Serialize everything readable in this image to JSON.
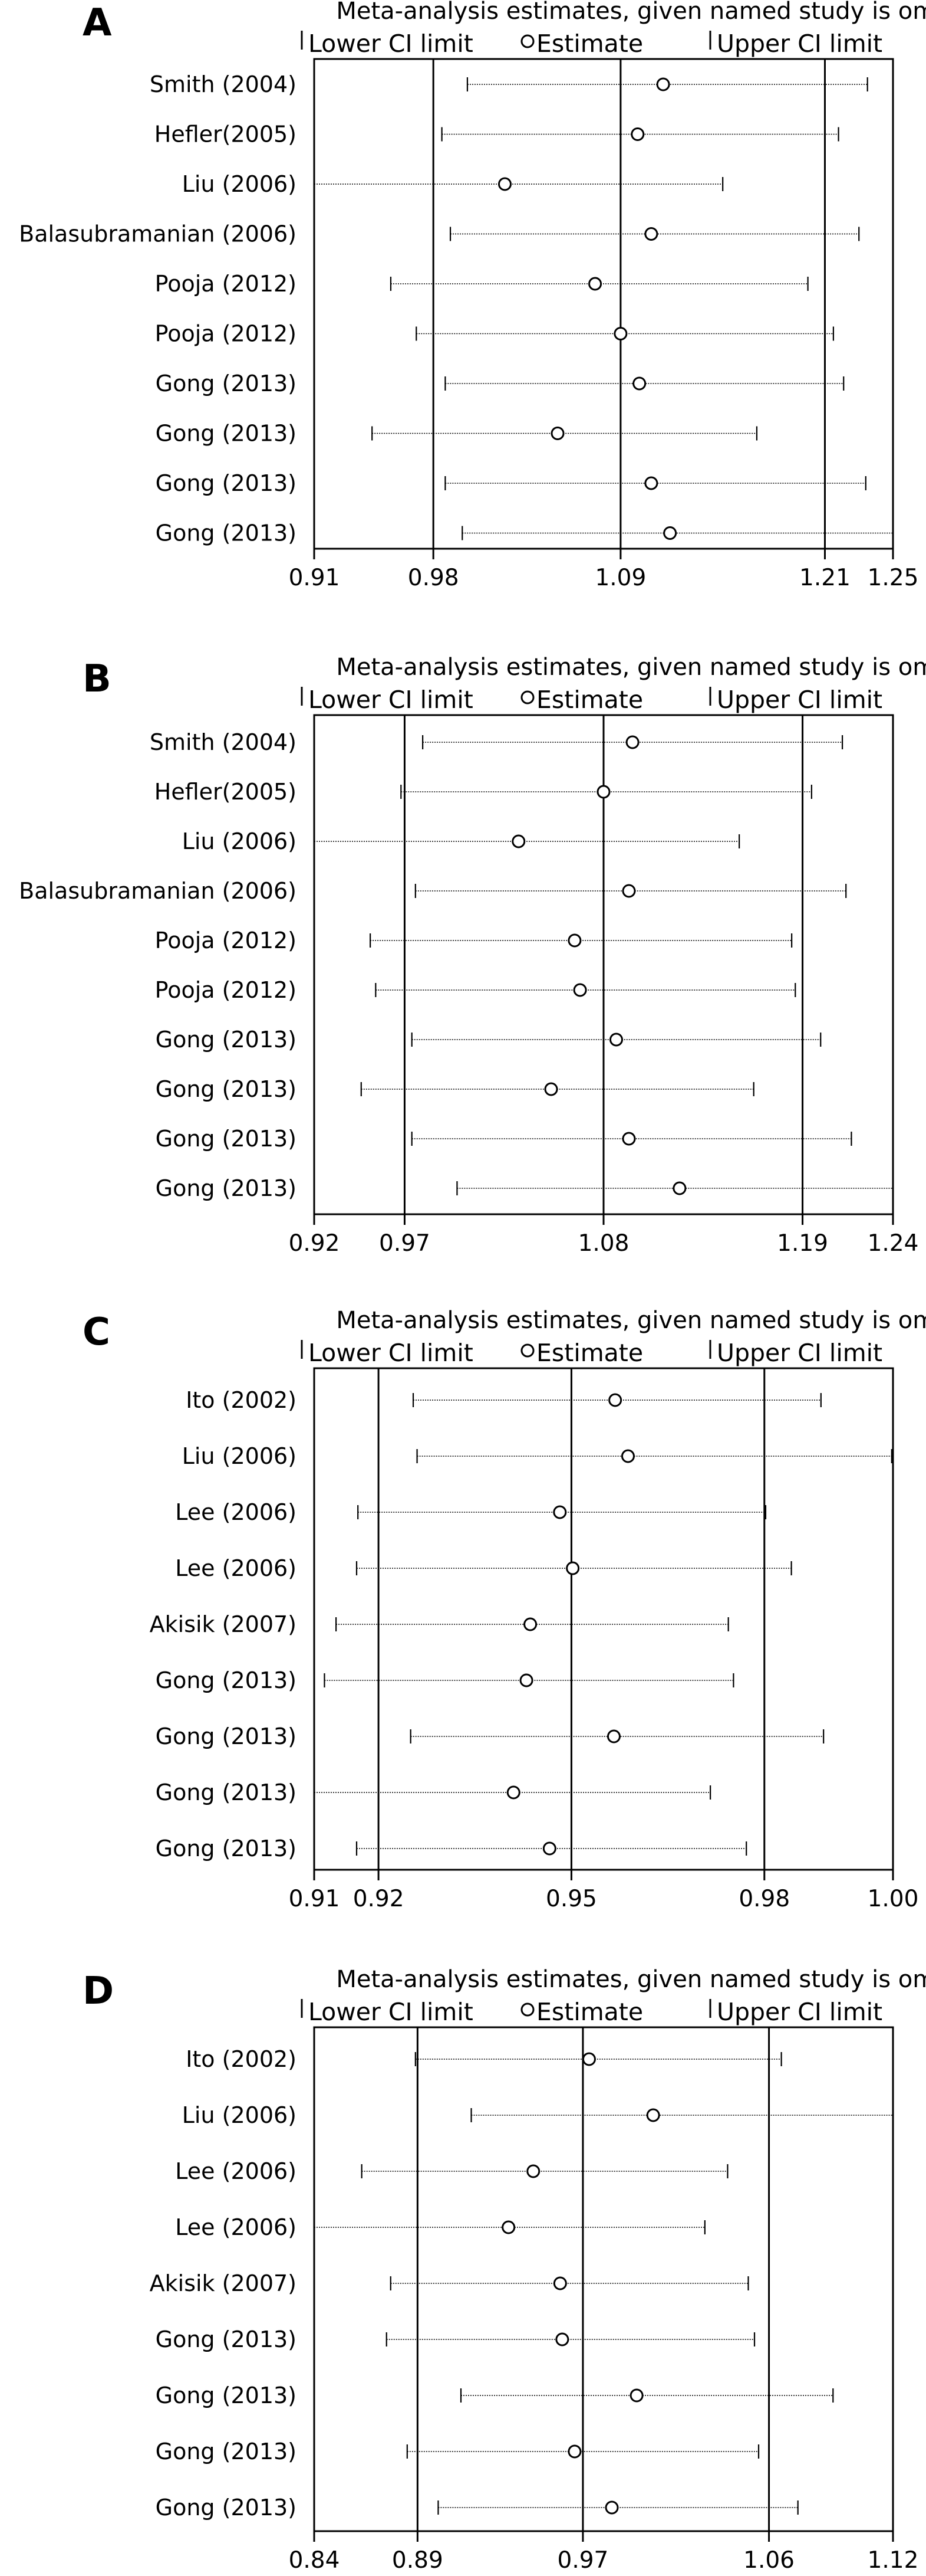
{
  "chart_data": [
    {
      "type": "forest",
      "panel": "A",
      "title": "Meta-analysis estimates, given named study is omitted",
      "legend": {
        "lower": "Lower CI limit",
        "estimate": "Estimate",
        "upper": "Upper CI limit"
      },
      "xlim": [
        0.91,
        1.25
      ],
      "ticks": [
        "0.91",
        "0.98",
        "1.09",
        "1.21",
        "1.25"
      ],
      "tick_values": [
        0.91,
        0.98,
        1.09,
        1.21,
        1.25
      ],
      "ref_lines": [
        0.98,
        1.09,
        1.21
      ],
      "studies": [
        {
          "name": "Smith (2004)",
          "estimate": 1.115,
          "lower": 1.0,
          "upper": 1.235
        },
        {
          "name": "Hefler(2005)",
          "estimate": 1.1,
          "lower": 0.985,
          "upper": 1.218
        },
        {
          "name": "Liu (2006)",
          "estimate": 1.022,
          "lower": 0.91,
          "upper": 1.15
        },
        {
          "name": "Balasubramanian (2006)",
          "estimate": 1.108,
          "lower": 0.99,
          "upper": 1.23
        },
        {
          "name": "Pooja (2012)",
          "estimate": 1.075,
          "lower": 0.955,
          "upper": 1.2
        },
        {
          "name": "Pooja (2012)",
          "estimate": 1.09,
          "lower": 0.97,
          "upper": 1.215
        },
        {
          "name": "Gong (2013)",
          "estimate": 1.101,
          "lower": 0.987,
          "upper": 1.221
        },
        {
          "name": "Gong (2013)",
          "estimate": 1.053,
          "lower": 0.944,
          "upper": 1.17
        },
        {
          "name": "Gong (2013)",
          "estimate": 1.108,
          "lower": 0.987,
          "upper": 1.234
        },
        {
          "name": "Gong (2013)",
          "estimate": 1.119,
          "lower": 0.997,
          "upper": 1.25
        }
      ]
    },
    {
      "type": "forest",
      "panel": "B",
      "title": "Meta-analysis estimates, given named study is omitted",
      "legend": {
        "lower": "Lower CI limit",
        "estimate": "Estimate",
        "upper": "Upper CI limit"
      },
      "xlim": [
        0.92,
        1.24
      ],
      "ticks": [
        "0.92",
        "0.97",
        "1.08",
        "1.19",
        "1.24"
      ],
      "tick_values": [
        0.92,
        0.97,
        1.08,
        1.19,
        1.24
      ],
      "ref_lines": [
        0.97,
        1.08,
        1.19
      ],
      "studies": [
        {
          "name": "Smith (2004)",
          "estimate": 1.096,
          "lower": 0.98,
          "upper": 1.212
        },
        {
          "name": "Hefler(2005)",
          "estimate": 1.08,
          "lower": 0.968,
          "upper": 1.195
        },
        {
          "name": "Liu (2006)",
          "estimate": 1.033,
          "lower": 0.92,
          "upper": 1.155
        },
        {
          "name": "Balasubramanian (2006)",
          "estimate": 1.094,
          "lower": 0.976,
          "upper": 1.214
        },
        {
          "name": "Pooja (2012)",
          "estimate": 1.064,
          "lower": 0.951,
          "upper": 1.184
        },
        {
          "name": "Pooja (2012)",
          "estimate": 1.067,
          "lower": 0.954,
          "upper": 1.186
        },
        {
          "name": "Gong (2013)",
          "estimate": 1.087,
          "lower": 0.974,
          "upper": 1.2
        },
        {
          "name": "Gong (2013)",
          "estimate": 1.051,
          "lower": 0.946,
          "upper": 1.163
        },
        {
          "name": "Gong (2013)",
          "estimate": 1.094,
          "lower": 0.974,
          "upper": 1.217
        },
        {
          "name": "Gong (2013)",
          "estimate": 1.122,
          "lower": 0.999,
          "upper": 1.24
        }
      ]
    },
    {
      "type": "forest",
      "panel": "C",
      "title": "Meta-analysis estimates, given named study is omitted",
      "legend": {
        "lower": "Lower CI limit",
        "estimate": "Estimate",
        "upper": "Upper CI limit"
      },
      "xlim": [
        0.91,
        1.0
      ],
      "ticks": [
        "0.91",
        "0.92",
        "0.95",
        "0.98",
        "1.00"
      ],
      "tick_values": [
        0.91,
        0.92,
        0.95,
        0.98,
        1.0
      ],
      "ref_lines": [
        0.92,
        0.95,
        0.98
      ],
      "studies": [
        {
          "name": "Ito (2002)",
          "estimate": 0.9568,
          "lower": 0.9254,
          "upper": 0.9888
        },
        {
          "name": "Liu (2006)",
          "estimate": 0.9588,
          "lower": 0.926,
          "upper": 0.9998
        },
        {
          "name": "Lee (2006)",
          "estimate": 0.9482,
          "lower": 0.9168,
          "upper": 0.9802
        },
        {
          "name": "Lee (2006)",
          "estimate": 0.9502,
          "lower": 0.9166,
          "upper": 0.9842
        },
        {
          "name": "Akisik (2007)",
          "estimate": 0.9436,
          "lower": 0.9134,
          "upper": 0.9744
        },
        {
          "name": "Gong (2013)",
          "estimate": 0.943,
          "lower": 0.9116,
          "upper": 0.9752
        },
        {
          "name": "Gong (2013)",
          "estimate": 0.9566,
          "lower": 0.925,
          "upper": 0.9892
        },
        {
          "name": "Gong (2013)",
          "estimate": 0.941,
          "lower": 0.91,
          "upper": 0.9716
        },
        {
          "name": "Gong (2013)",
          "estimate": 0.9466,
          "lower": 0.9166,
          "upper": 0.9772
        }
      ]
    },
    {
      "type": "forest",
      "panel": "D",
      "title": "Meta-analysis estimates, given named study is omitted",
      "legend": {
        "lower": "Lower CI limit",
        "estimate": "Estimate",
        "upper": "Upper CI limit"
      },
      "xlim": [
        0.84,
        1.12
      ],
      "ticks": [
        "0.84",
        "0.89",
        "0.97",
        "1.06",
        "1.12"
      ],
      "tick_values": [
        0.84,
        0.89,
        0.97,
        1.06,
        1.12
      ],
      "ref_lines": [
        0.89,
        0.97,
        1.06
      ],
      "studies": [
        {
          "name": "Ito (2002)",
          "estimate": 0.973,
          "lower": 0.889,
          "upper": 1.066
        },
        {
          "name": "Liu (2006)",
          "estimate": 1.004,
          "lower": 0.916,
          "upper": 1.12
        },
        {
          "name": "Lee (2006)",
          "estimate": 0.946,
          "lower": 0.863,
          "upper": 1.04
        },
        {
          "name": "Lee (2006)",
          "estimate": 0.934,
          "lower": 0.84,
          "upper": 1.029
        },
        {
          "name": "Akisik (2007)",
          "estimate": 0.959,
          "lower": 0.877,
          "upper": 1.05
        },
        {
          "name": "Gong (2013)",
          "estimate": 0.96,
          "lower": 0.875,
          "upper": 1.053
        },
        {
          "name": "Gong (2013)",
          "estimate": 0.996,
          "lower": 0.911,
          "upper": 1.091
        },
        {
          "name": "Gong (2013)",
          "estimate": 0.966,
          "lower": 0.885,
          "upper": 1.055
        },
        {
          "name": "Gong (2013)",
          "estimate": 0.984,
          "lower": 0.9,
          "upper": 1.074
        }
      ]
    }
  ]
}
